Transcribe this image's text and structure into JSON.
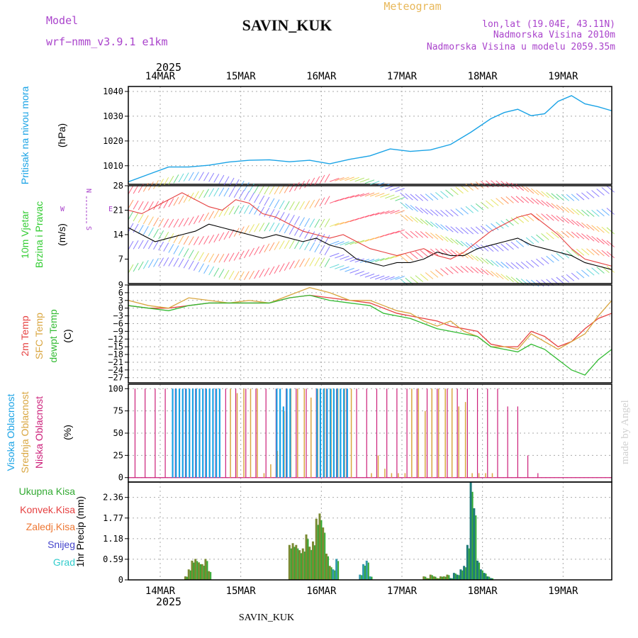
{
  "header": {
    "model_label": "Model",
    "model_name": "wrf−nmm_v3.9.1  e1km",
    "station": "SAVIN_KUK",
    "title": "Meteogram",
    "coords": "lon,lat (19.04E, 43.11N)",
    "altitude": "Nadmorska Visina 2010m",
    "model_altitude": "Nadmorska Visina u modelu 2059.35m",
    "year_top": "2025",
    "year_bottom": "2025",
    "footer_station": "SAVIN_KUK",
    "credit": "made by Angel"
  },
  "colors": {
    "pressure": "#1aa3e6",
    "wind_label": "#33cc33",
    "temp2m": "#e64040",
    "sfc": "#d9a640",
    "dew": "#33bb33",
    "high": "#1aa3e6",
    "mid": "#d9a640",
    "low": "#cc1f7a",
    "precip_total": "#33aa33",
    "precip_conv": "#e64040",
    "precip_frz": "#ee7733",
    "precip_snow": "#4444cc",
    "precip_grad": "#33cccc",
    "model": "#aa44cc",
    "title": "#e8b85a"
  },
  "chart_data": [
    {
      "type": "line",
      "id": "pressure",
      "ylabel_main": "Pritisak na nivou mora",
      "ylabel_unit": "(hPa)",
      "x_ticks": [
        "14MAR",
        "15MAR",
        "16MAR",
        "17MAR",
        "18MAR",
        "19MAR"
      ],
      "y_ticks": [
        "1010",
        "1020",
        "1030",
        "1040"
      ],
      "ylim": [
        1002.5,
        1042
      ],
      "xlim": [
        0,
        144
      ],
      "grid": true,
      "x": [
        0,
        6,
        12,
        18,
        24,
        30,
        36,
        42,
        48,
        54,
        60,
        66,
        72,
        78,
        84,
        90,
        96,
        102,
        108,
        112,
        116,
        120,
        124,
        128,
        132,
        136,
        140,
        144
      ],
      "values": [
        1003.5,
        1006.5,
        1009.5,
        1009.5,
        1010.2,
        1011.5,
        1012.2,
        1012.4,
        1011.6,
        1012.2,
        1010.8,
        1012.6,
        1014.0,
        1016.8,
        1015.8,
        1016.4,
        1018.6,
        1023.5,
        1029.0,
        1031.5,
        1032.8,
        1030.2,
        1031.0,
        1036.0,
        1038.3,
        1035.0,
        1033.8,
        1032.2
      ]
    },
    {
      "type": "line",
      "id": "wind",
      "ylabel_main": "10m Vjetar",
      "ylabel_sub": "Brzina i Pravac",
      "ylabel_unit": "(m/s)",
      "y_ticks": [
        "7",
        "14",
        "21",
        "28"
      ],
      "ylim": [
        0,
        28
      ],
      "xlim": [
        0,
        144
      ],
      "grid": true,
      "compass": {
        "n": "N",
        "s": "S",
        "w": "W",
        "e": "E"
      },
      "x": [
        0,
        4,
        8,
        12,
        16,
        20,
        24,
        28,
        32,
        36,
        40,
        44,
        48,
        52,
        56,
        60,
        64,
        68,
        72,
        76,
        80,
        84,
        88,
        92,
        96,
        100,
        104,
        108,
        112,
        116,
        120,
        124,
        128,
        132,
        136,
        140,
        144
      ],
      "speed": [
        16,
        14,
        12,
        13,
        14,
        15,
        17,
        16,
        15,
        14,
        13,
        14,
        13,
        12,
        13,
        11,
        10,
        7,
        6,
        5,
        6,
        6,
        7,
        9,
        8,
        8,
        10,
        11,
        12,
        13,
        11,
        10,
        9,
        8,
        6,
        5,
        4
      ],
      "gust": [
        21,
        20,
        22,
        24,
        26,
        24,
        22,
        21,
        24,
        23,
        20,
        19,
        17,
        15,
        14,
        13,
        14,
        12,
        10,
        9,
        8,
        9,
        10,
        8,
        7,
        9,
        12,
        15,
        17,
        19,
        20,
        17,
        14,
        10,
        7,
        6,
        5
      ]
    },
    {
      "type": "line",
      "id": "temperature",
      "ylabel_main": "2m Temp",
      "ylabel_sub": "SFC Temp",
      "ylabel_sub2": "dewpt Temp",
      "ylabel_unit": "(C)",
      "y_ticks": [
        "9",
        "6",
        "3",
        "0",
        "−3",
        "−6",
        "−9",
        "−12",
        "−15",
        "−18",
        "−21",
        "−24",
        "−27"
      ],
      "ylim": [
        -29,
        9
      ],
      "xlim": [
        0,
        144
      ],
      "grid": true,
      "x": [
        0,
        6,
        12,
        18,
        24,
        30,
        36,
        42,
        48,
        54,
        60,
        66,
        72,
        76,
        80,
        84,
        88,
        92,
        96,
        100,
        104,
        108,
        112,
        116,
        120,
        124,
        128,
        132,
        136,
        140,
        144
      ],
      "series": [
        {
          "name": "2m Temp",
          "values": [
            1,
            0,
            0,
            1,
            2,
            2,
            2,
            2,
            4,
            5,
            4,
            3,
            2,
            0,
            -2,
            -3,
            -4,
            -5,
            -7,
            -8,
            -9,
            -14,
            -15,
            -15,
            -9,
            -11,
            -15,
            -13,
            -8,
            -4,
            -2
          ]
        },
        {
          "name": "SFC Temp",
          "values": [
            3,
            1,
            0,
            4,
            3,
            2,
            3,
            2,
            5,
            8,
            6,
            3,
            3,
            1,
            -1,
            -2,
            -5,
            -7,
            -5,
            -9,
            -11,
            -15,
            -15,
            -16,
            -10,
            -13,
            -16,
            -13,
            -10,
            -3,
            3
          ]
        },
        {
          "name": "dewpt Temp",
          "values": [
            1,
            0,
            -1,
            1,
            2,
            2,
            2,
            2,
            4,
            5,
            3,
            2,
            1,
            -2,
            -3,
            -4,
            -6,
            -8,
            -9,
            -10,
            -11,
            -15,
            -16,
            -17,
            -14,
            -16,
            -20,
            -24,
            -26,
            -20,
            -16
          ]
        }
      ]
    },
    {
      "type": "bar",
      "id": "clouds",
      "ylabel_main": "Visoka Oblacnost",
      "ylabel_sub": "Srednja Oblacnost",
      "ylabel_sub2": "Niska Oblacnost",
      "ylabel_unit": "(%)",
      "y_ticks": [
        "0",
        "25",
        "50",
        "75",
        "100"
      ],
      "ylim": [
        -5,
        105
      ],
      "xlim": [
        0,
        144
      ],
      "grid": true,
      "high_x": [
        13,
        14,
        15,
        16,
        17,
        18,
        19,
        20,
        21,
        22,
        23,
        24,
        25,
        26,
        27,
        44,
        45,
        46,
        47,
        48,
        56,
        57,
        58,
        59,
        60,
        61,
        62,
        63,
        64,
        65
      ],
      "high_v": [
        100,
        100,
        100,
        100,
        100,
        100,
        100,
        100,
        100,
        100,
        100,
        100,
        100,
        100,
        100,
        100,
        100,
        80,
        100,
        100,
        100,
        100,
        100,
        100,
        100,
        100,
        100,
        100,
        100,
        100
      ],
      "mid_x": [
        30,
        32,
        34,
        36,
        38,
        40,
        42,
        44,
        46,
        48,
        50,
        52,
        54,
        56,
        58,
        60,
        62,
        64,
        66,
        72,
        74,
        76,
        78,
        80,
        82,
        84,
        86,
        88,
        90,
        92,
        94,
        96,
        98,
        100,
        102,
        104,
        106,
        108
      ],
      "mid_v": [
        100,
        95,
        100,
        100,
        100,
        5,
        15,
        30,
        75,
        100,
        100,
        100,
        90,
        100,
        100,
        100,
        100,
        100,
        100,
        5,
        25,
        10,
        5,
        5,
        5,
        100,
        100,
        75,
        100,
        100,
        100,
        100,
        80,
        85,
        5,
        5,
        5,
        5
      ],
      "low_x": [
        2,
        5,
        8,
        11,
        14,
        17,
        20,
        23,
        26,
        29,
        32,
        35,
        38,
        41,
        44,
        47,
        50,
        53,
        56,
        59,
        62,
        65,
        68,
        71,
        74,
        77,
        80,
        83,
        86,
        89,
        92,
        95,
        98,
        101,
        104,
        107,
        110,
        113,
        116,
        119,
        122
      ],
      "low_v": [
        100,
        100,
        100,
        100,
        100,
        100,
        100,
        100,
        100,
        100,
        100,
        100,
        100,
        100,
        100,
        100,
        100,
        100,
        100,
        100,
        100,
        100,
        100,
        100,
        100,
        100,
        100,
        100,
        100,
        100,
        100,
        100,
        100,
        100,
        100,
        100,
        100,
        80,
        80,
        25,
        5
      ]
    },
    {
      "type": "bar",
      "id": "precip",
      "ylabel_unit": "1hr Precip (mm)",
      "legend": [
        "Ukupna Kisa",
        "Konvek.Kisa",
        "Zaledj.Kisa",
        "Snijeg",
        "Grad"
      ],
      "y_ticks": [
        "0",
        "0.59",
        "1.18",
        "1.77",
        "2.36"
      ],
      "ylim": [
        0,
        2.8
      ],
      "xlim": [
        0,
        144
      ],
      "grid": true,
      "x": [
        17,
        18,
        19,
        20,
        21,
        22,
        23,
        24,
        48,
        49,
        50,
        51,
        52,
        53,
        54,
        55,
        56,
        57,
        58,
        59,
        60,
        61,
        62,
        69,
        70,
        71,
        72,
        88,
        89,
        90,
        91,
        92,
        93,
        94,
        95,
        96,
        97,
        98,
        99,
        100,
        101,
        102,
        103,
        104,
        105,
        106,
        107,
        108
      ],
      "values": [
        0.1,
        0.3,
        0.55,
        0.6,
        0.5,
        0.45,
        0.6,
        0.25,
        1.0,
        1.05,
        1.0,
        0.85,
        0.9,
        1.3,
        0.95,
        1.1,
        1.75,
        1.9,
        1.5,
        0.75,
        0.4,
        0.3,
        0.6,
        0.15,
        0.45,
        0.55,
        0.1,
        0.1,
        0.05,
        0.15,
        0.1,
        0.05,
        0.1,
        0.1,
        0.15,
        0.05,
        0.2,
        0.15,
        0.3,
        0.4,
        1.0,
        2.8,
        2.05,
        0.55,
        0.3,
        0.2,
        0.1,
        0.05
      ]
    }
  ]
}
